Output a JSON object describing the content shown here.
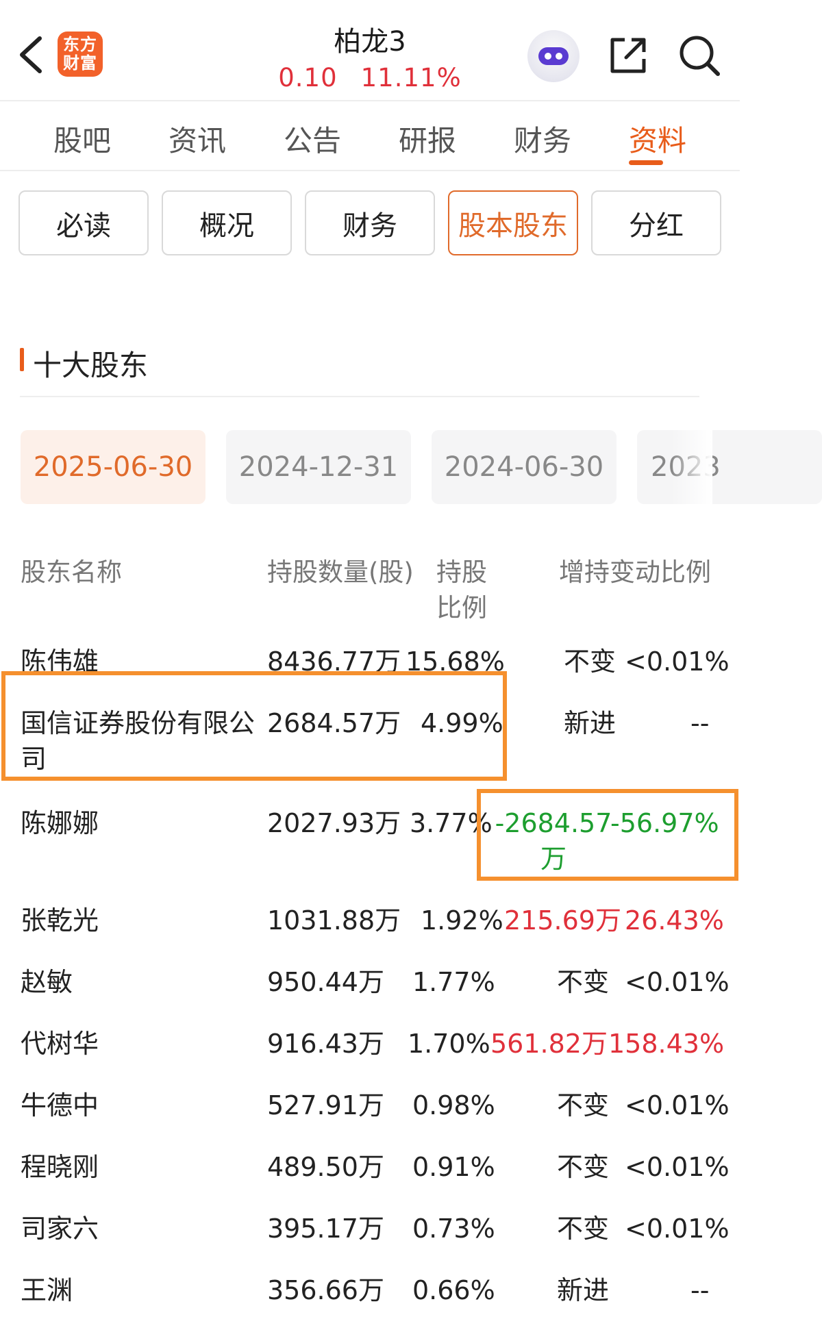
{
  "header": {
    "logo_line1": "东方",
    "logo_line2": "财富",
    "title": "柏龙3",
    "price": "0.10",
    "change_pct": "11.11%"
  },
  "main_tabs": [
    "股吧",
    "资讯",
    "公告",
    "研报",
    "财务",
    "资料"
  ],
  "sub_tabs": [
    "必读",
    "概况",
    "财务",
    "股本股东",
    "分红"
  ],
  "section_title": "十大股东",
  "dates": [
    "2025-06-30",
    "2024-12-31",
    "2024-06-30",
    "2023"
  ],
  "table": {
    "headers": {
      "name": "股东名称",
      "shares": "持股数量(股)",
      "ratio_line1": "持股",
      "ratio_line2": "比例",
      "change": "增持变动比例"
    },
    "rows": [
      {
        "name": "陈伟雄",
        "shares": "8436.77万",
        "ratio": "15.68%",
        "change_amount": "不变",
        "change_ratio": "<0.01%"
      },
      {
        "name": "国信证券股份有限公司",
        "shares": "2684.57万",
        "ratio": "4.99%",
        "change_amount": "新进",
        "change_ratio": "--"
      },
      {
        "name": "陈娜娜",
        "shares": "2027.93万",
        "ratio": "3.77%",
        "change_amount": "-2684.57万",
        "change_ratio": "-56.97%"
      },
      {
        "name": "张乾光",
        "shares": "1031.88万",
        "ratio": "1.92%",
        "change_amount": "215.69万",
        "change_ratio": "26.43%"
      },
      {
        "name": "赵敏",
        "shares": "950.44万",
        "ratio": "1.77%",
        "change_amount": "不变",
        "change_ratio": "<0.01%"
      },
      {
        "name": "代树华",
        "shares": "916.43万",
        "ratio": "1.70%",
        "change_amount": "561.82万",
        "change_ratio": "158.43%"
      },
      {
        "name": "牛德中",
        "shares": "527.91万",
        "ratio": "0.98%",
        "change_amount": "不变",
        "change_ratio": "<0.01%"
      },
      {
        "name": "程晓刚",
        "shares": "489.50万",
        "ratio": "0.91%",
        "change_amount": "不变",
        "change_ratio": "<0.01%"
      },
      {
        "name": "司家六",
        "shares": "395.17万",
        "ratio": "0.73%",
        "change_amount": "不变",
        "change_ratio": "<0.01%"
      },
      {
        "name": "王渊",
        "shares": "356.66万",
        "ratio": "0.66%",
        "change_amount": "新进",
        "change_ratio": "--"
      }
    ]
  },
  "colors": {
    "accent": "#e85c1a",
    "up": "#e0303a",
    "down": "#1d9e2f",
    "highlight": "#f5902e"
  }
}
